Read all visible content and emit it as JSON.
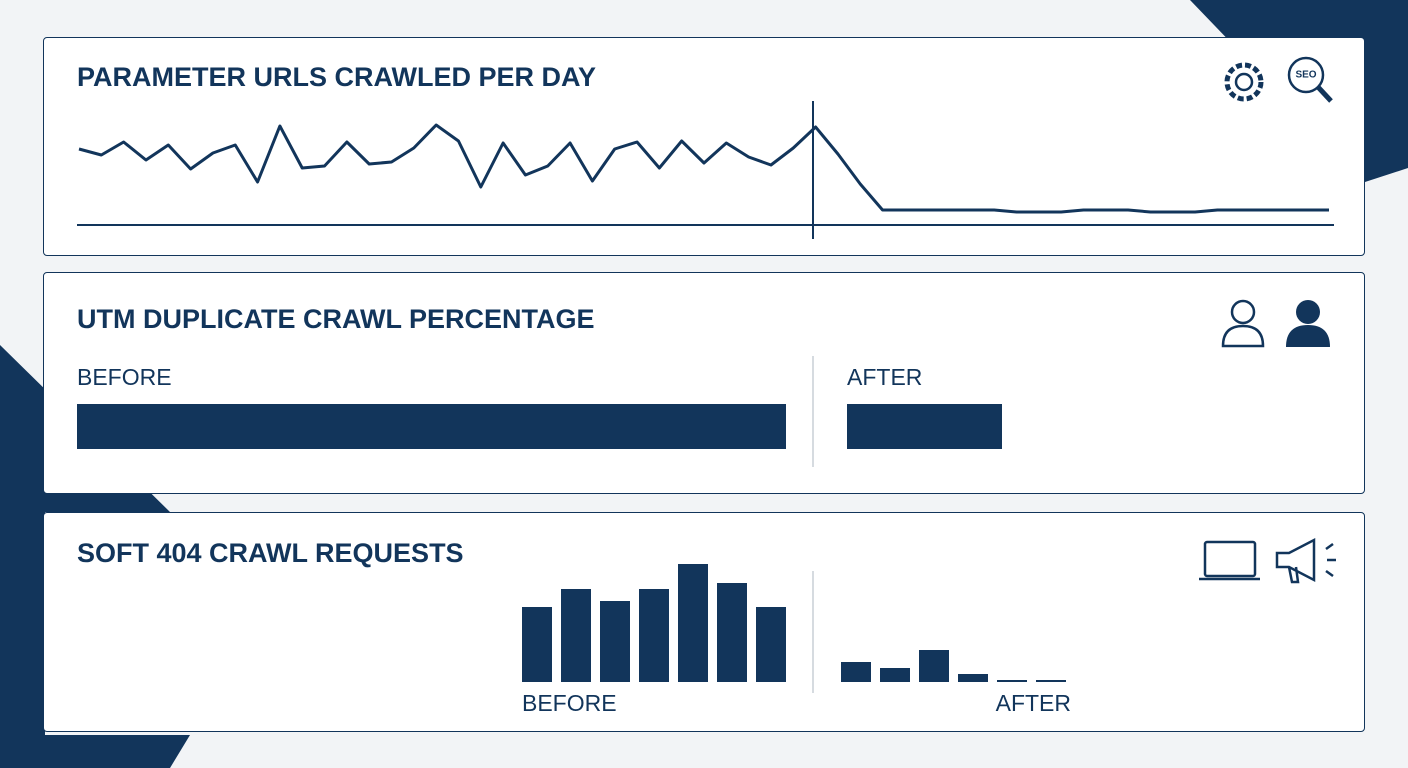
{
  "chart_data": [
    {
      "type": "line",
      "title": "PARAMETER URLS CRAWLED PER DAY",
      "color": "#12355b",
      "values": [
        76,
        70,
        83,
        65,
        80,
        56,
        72,
        80,
        43,
        99,
        57,
        59,
        83,
        61,
        63,
        77,
        100,
        84,
        38,
        82,
        50,
        59,
        82,
        44,
        76,
        83,
        57,
        84,
        62,
        82,
        68,
        60,
        77,
        98,
        71,
        41,
        15,
        15,
        15,
        15,
        15,
        15,
        13,
        13,
        13,
        15,
        15,
        15,
        13,
        13,
        13,
        15,
        15,
        15,
        15,
        15,
        15
      ],
      "ylim": [
        0,
        124
      ]
    },
    {
      "type": "hbar",
      "title": "UTM DUPLICATE CRAWL PERCENTAGE",
      "color": "#12355b",
      "categories": [
        "BEFORE",
        "AFTER"
      ],
      "values": [
        709,
        155
      ],
      "xlim": [
        0,
        709
      ]
    },
    {
      "type": "groupbar",
      "title": "SOFT 404 CRAWL REQUESTS",
      "color": "#12355b",
      "groups": [
        {
          "name": "BEFORE",
          "values": [
            75,
            93,
            81,
            93,
            118,
            99,
            75
          ]
        },
        {
          "name": "AFTER",
          "values": [
            20,
            14,
            32,
            8,
            2,
            2
          ]
        }
      ],
      "ylim": [
        0,
        118
      ]
    }
  ]
}
